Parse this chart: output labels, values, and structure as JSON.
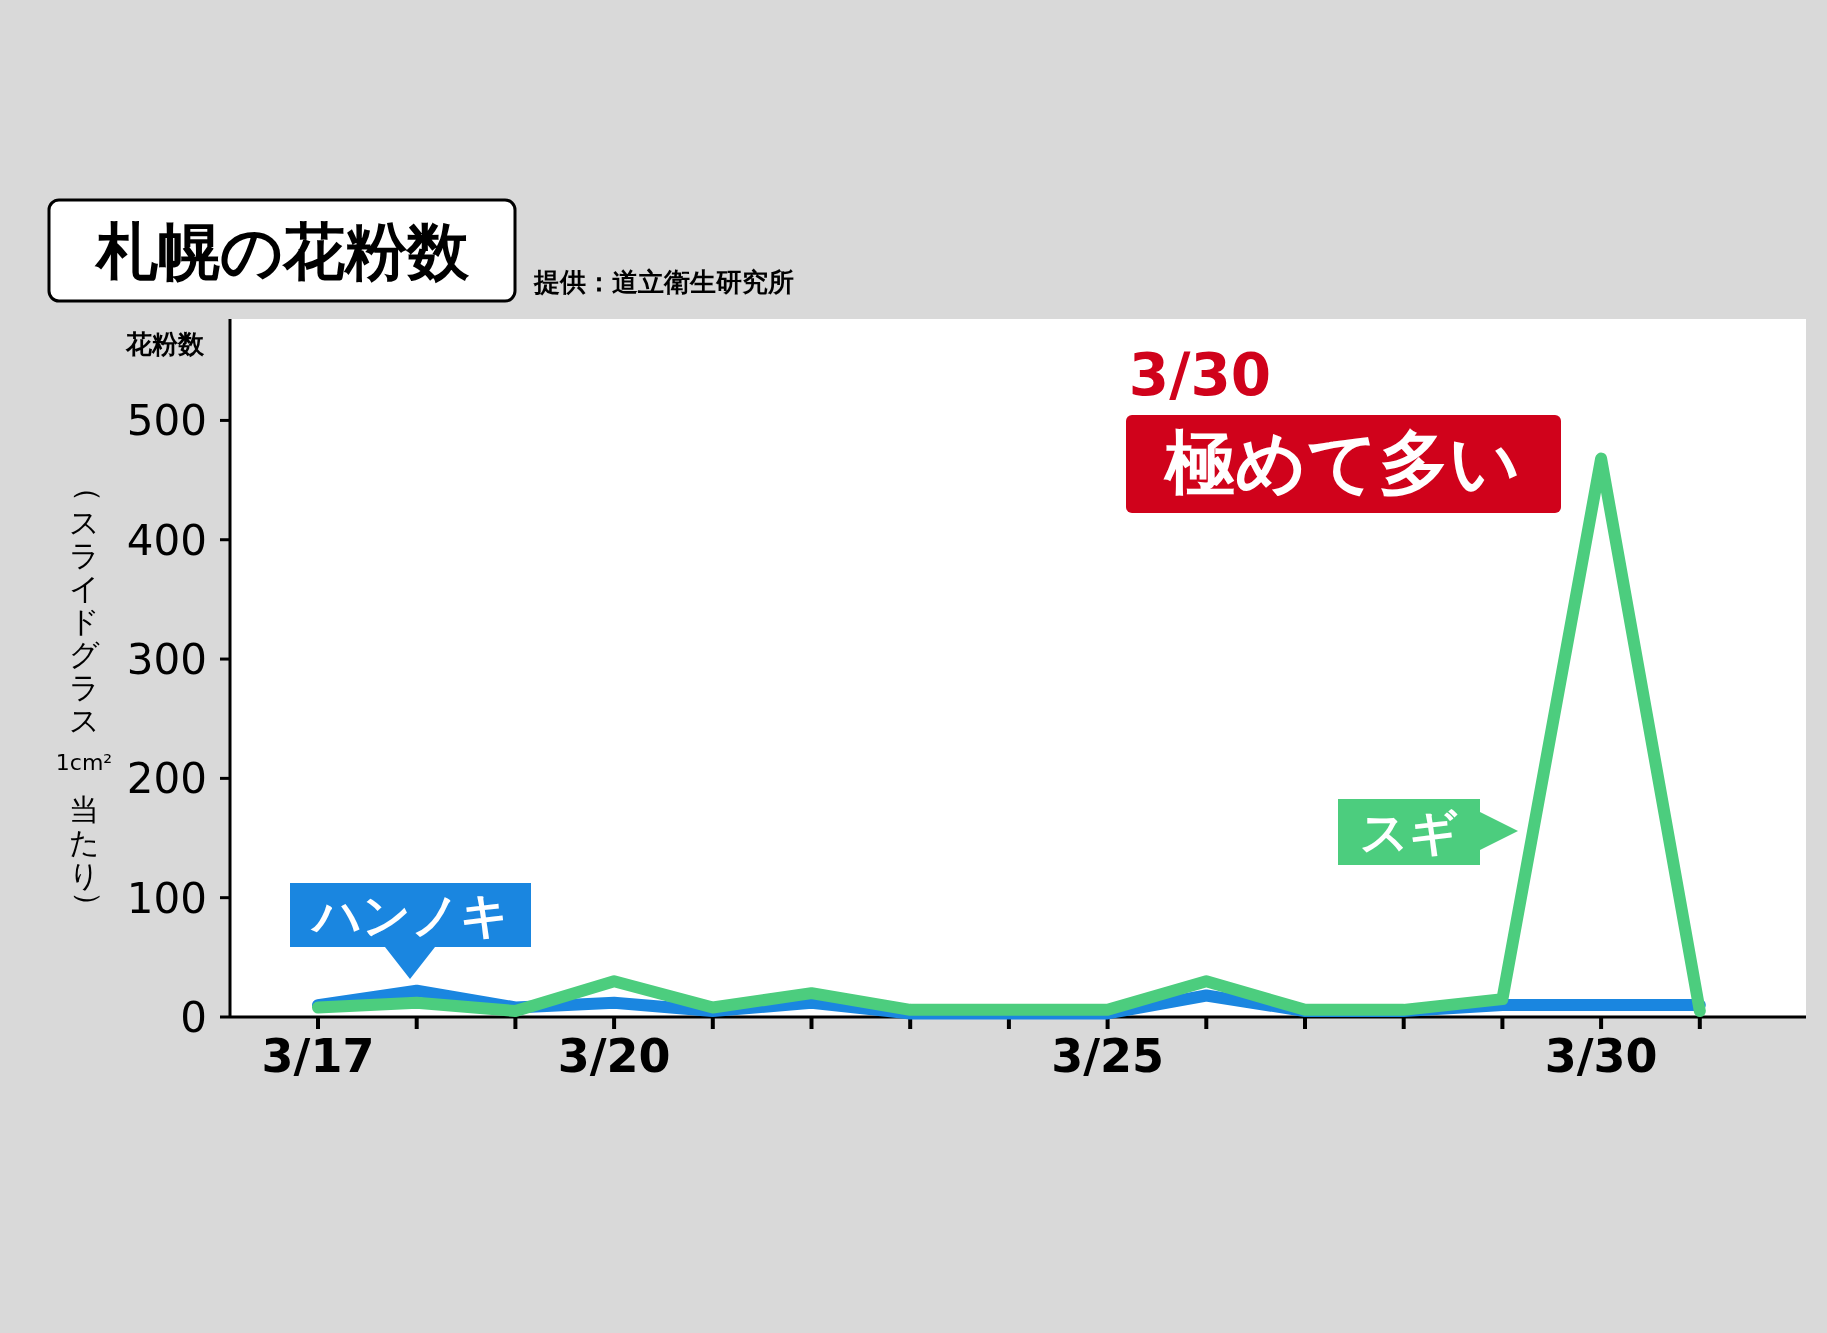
{
  "chart_data": {
    "type": "line",
    "title": "札幌の花粉数",
    "ylabel": "花粉数",
    "annotations": [
      "提供：道立衛生研究所",
      "（スライドグラス 1cm² 当たり）",
      "3/30",
      "極めて多い"
    ],
    "categories": [
      "3/17",
      null,
      null,
      "3/20",
      null,
      null,
      null,
      null,
      "3/25",
      null,
      null,
      null,
      null,
      "3/30",
      null
    ],
    "series": [
      {
        "name": "ハンノキ",
        "color": "#1a86e0",
        "values": [
          10,
          22,
          8,
          12,
          5,
          12,
          3,
          3,
          3,
          18,
          5,
          5,
          10,
          10,
          10
        ]
      },
      {
        "name": "スギ",
        "color": "#4ccd7e",
        "values": [
          8,
          12,
          5,
          30,
          8,
          20,
          6,
          6,
          6,
          30,
          6,
          6,
          15,
          468,
          5
        ]
      }
    ],
    "ylim": [
      0,
      585
    ],
    "yticks": [
      0,
      100,
      200,
      300,
      400,
      500
    ],
    "grid": false,
    "marker": "none",
    "line_style": "solid"
  }
}
